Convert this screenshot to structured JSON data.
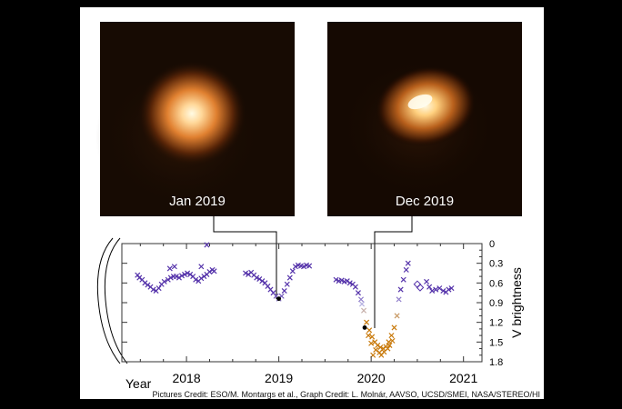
{
  "images": [
    {
      "label": "Jan 2019"
    },
    {
      "label": "Dec 2019"
    }
  ],
  "credit": "Pictures Credit: ESO/M. Montargs et al., Graph Credit: L. Molnár, AAVSO, UCSD/SMEI, NASA/STEREO/HI",
  "chart_data": {
    "type": "scatter",
    "title": "",
    "xlabel": "Year",
    "ylabel": "V brightness",
    "xlim": [
      2017.3,
      2021.2
    ],
    "ylim": [
      1.8,
      0
    ],
    "y_inverted": true,
    "xticks": [
      "2018",
      "2019",
      "2020",
      "2021"
    ],
    "yticks": [
      "0",
      "0.3",
      "0.6",
      "0.9",
      "1.2",
      "1.5",
      "1.8"
    ],
    "grid": false,
    "colors": {
      "bright": "#5533aa",
      "faint": "#c8790a"
    },
    "series": [
      {
        "marker": "x",
        "points": [
          [
            2017.47,
            0.48
          ],
          [
            2017.49,
            0.52
          ],
          [
            2017.52,
            0.55
          ],
          [
            2017.55,
            0.6
          ],
          [
            2017.58,
            0.63
          ],
          [
            2017.61,
            0.66
          ],
          [
            2017.64,
            0.7
          ],
          [
            2017.67,
            0.72
          ],
          [
            2017.7,
            0.68
          ],
          [
            2017.73,
            0.62
          ],
          [
            2017.76,
            0.58
          ],
          [
            2017.8,
            0.55
          ],
          [
            2017.83,
            0.52
          ],
          [
            2017.86,
            0.5
          ],
          [
            2017.89,
            0.5
          ],
          [
            2017.92,
            0.52
          ],
          [
            2017.95,
            0.49
          ],
          [
            2017.98,
            0.47
          ],
          [
            2018.01,
            0.45
          ],
          [
            2018.04,
            0.47
          ],
          [
            2018.07,
            0.5
          ],
          [
            2018.1,
            0.55
          ],
          [
            2018.13,
            0.57
          ],
          [
            2018.16,
            0.53
          ],
          [
            2018.19,
            0.5
          ],
          [
            2018.22,
            0.47
          ],
          [
            2018.25,
            0.43
          ],
          [
            2018.28,
            0.4
          ],
          [
            2018.3,
            0.42
          ],
          [
            2017.82,
            0.38
          ],
          [
            2017.87,
            0.35
          ],
          [
            2018.16,
            0.35
          ],
          [
            2018.22,
            0.02
          ],
          [
            2018.64,
            0.45
          ],
          [
            2018.67,
            0.47
          ],
          [
            2018.7,
            0.44
          ],
          [
            2018.73,
            0.48
          ],
          [
            2018.76,
            0.52
          ],
          [
            2018.79,
            0.54
          ],
          [
            2018.82,
            0.57
          ],
          [
            2018.85,
            0.6
          ],
          [
            2018.88,
            0.65
          ],
          [
            2018.91,
            0.7
          ],
          [
            2018.94,
            0.75
          ],
          [
            2018.97,
            0.8
          ],
          [
            2019.0,
            0.84
          ],
          [
            2019.03,
            0.8
          ],
          [
            2019.06,
            0.72
          ],
          [
            2019.09,
            0.62
          ],
          [
            2019.12,
            0.52
          ],
          [
            2019.15,
            0.42
          ],
          [
            2019.18,
            0.35
          ],
          [
            2019.21,
            0.33
          ],
          [
            2019.24,
            0.34
          ],
          [
            2019.27,
            0.35
          ],
          [
            2019.3,
            0.33
          ],
          [
            2019.33,
            0.34
          ],
          [
            2019.62,
            0.55
          ],
          [
            2019.65,
            0.57
          ],
          [
            2019.68,
            0.56
          ],
          [
            2019.71,
            0.58
          ],
          [
            2019.74,
            0.57
          ],
          [
            2019.77,
            0.6
          ],
          [
            2019.8,
            0.62
          ],
          [
            2019.83,
            0.66
          ],
          [
            2019.86,
            0.75
          ],
          [
            2019.89,
            0.85
          ],
          [
            2020.3,
            0.85
          ],
          [
            2020.32,
            0.7
          ],
          [
            2020.35,
            0.55
          ],
          [
            2020.38,
            0.4
          ],
          [
            2020.4,
            0.3
          ],
          [
            2020.6,
            0.58
          ],
          [
            2020.63,
            0.66
          ],
          [
            2020.66,
            0.72
          ],
          [
            2020.7,
            0.7
          ],
          [
            2020.74,
            0.68
          ],
          [
            2020.78,
            0.72
          ],
          [
            2020.81,
            0.74
          ],
          [
            2020.84,
            0.7
          ],
          [
            2020.87,
            0.68
          ]
        ]
      },
      {
        "marker": "x",
        "points": [
          [
            2019.92,
            1.02
          ],
          [
            2019.95,
            1.2
          ],
          [
            2019.98,
            1.32
          ],
          [
            2020.01,
            1.42
          ],
          [
            2020.04,
            1.5
          ],
          [
            2020.07,
            1.55
          ],
          [
            2020.1,
            1.58
          ],
          [
            2020.13,
            1.6
          ],
          [
            2020.16,
            1.57
          ],
          [
            2020.19,
            1.5
          ],
          [
            2020.22,
            1.4
          ],
          [
            2020.25,
            1.28
          ],
          [
            2020.28,
            1.1
          ],
          [
            2019.97,
            1.4
          ],
          [
            2020.0,
            1.52
          ],
          [
            2020.05,
            1.62
          ],
          [
            2020.09,
            1.66
          ],
          [
            2020.14,
            1.65
          ],
          [
            2020.18,
            1.6
          ],
          [
            2020.23,
            1.48
          ],
          [
            2020.02,
            1.7
          ],
          [
            2020.11,
            1.7
          ],
          [
            2020.2,
            1.55
          ],
          [
            2019.9,
            0.92
          ]
        ]
      },
      {
        "marker": "diamond",
        "points": [
          [
            2020.5,
            0.62
          ],
          [
            2020.53,
            0.67
          ]
        ]
      }
    ],
    "highlighted_points": [
      {
        "x": 2019.0,
        "y": 0.84,
        "label": "Jan 2019"
      },
      {
        "x": 2019.93,
        "y": 1.28,
        "label": "Dec 2019"
      }
    ]
  }
}
